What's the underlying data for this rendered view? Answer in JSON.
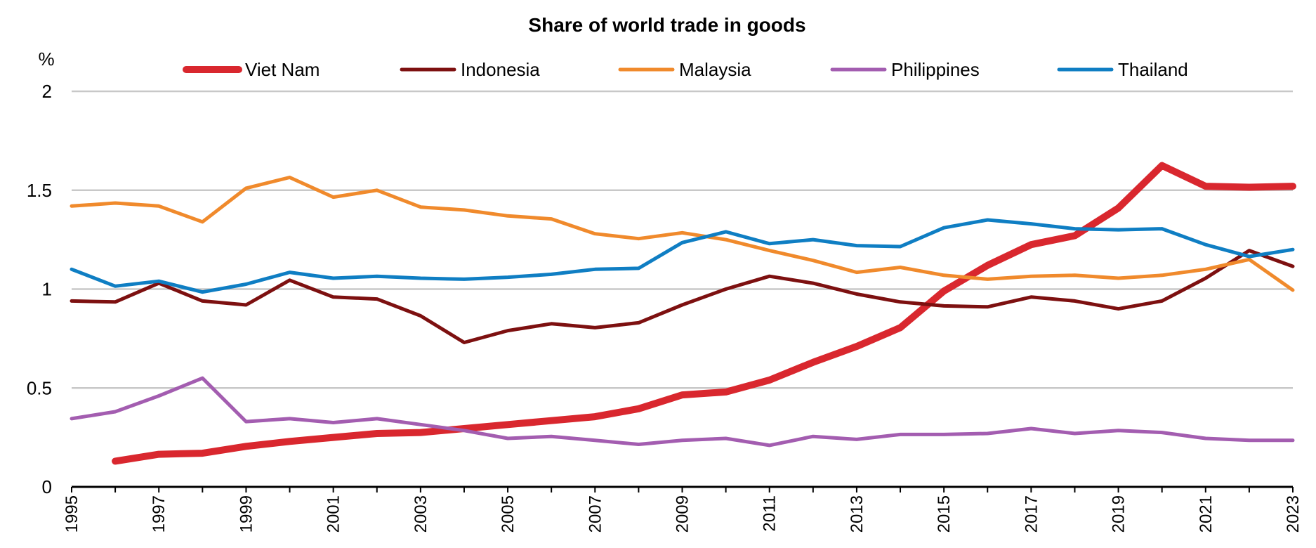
{
  "chart_data": {
    "type": "line",
    "title": "Share of world trade in goods",
    "ylabel": "%",
    "xlabel": "",
    "ylim": [
      0,
      2
    ],
    "yticks": [
      0,
      0.5,
      1,
      1.5,
      2
    ],
    "ytick_labels": [
      "0",
      "0.5",
      "1",
      "1.5",
      "2"
    ],
    "x": [
      1995,
      1996,
      1997,
      1998,
      1999,
      2000,
      2001,
      2002,
      2003,
      2004,
      2005,
      2006,
      2007,
      2008,
      2009,
      2010,
      2011,
      2012,
      2013,
      2014,
      2015,
      2016,
      2017,
      2018,
      2019,
      2020,
      2021,
      2022,
      2023
    ],
    "xtick_labels": [
      "1995",
      "1997",
      "1999",
      "2001",
      "2003",
      "2005",
      "2007",
      "2009",
      "2011",
      "2013",
      "2015",
      "2017",
      "2019",
      "2021",
      "2023"
    ],
    "grid": true,
    "legend_position": "top",
    "series": [
      {
        "name": "Viet Nam",
        "color": "#d9272e",
        "width": "thick",
        "values": [
          null,
          0.13,
          0.165,
          0.17,
          0.205,
          0.23,
          0.25,
          0.27,
          0.275,
          0.295,
          0.315,
          0.335,
          0.355,
          0.395,
          0.465,
          0.48,
          0.54,
          0.63,
          0.71,
          0.805,
          0.99,
          1.12,
          1.225,
          1.27,
          1.41,
          1.625,
          1.52,
          1.515,
          1.52
        ]
      },
      {
        "name": "Indonesia",
        "color": "#7d1010",
        "width": "normal",
        "values": [
          0.94,
          0.935,
          1.03,
          0.94,
          0.92,
          1.045,
          0.96,
          0.95,
          0.865,
          0.73,
          0.79,
          0.825,
          0.805,
          0.83,
          0.92,
          1.0,
          1.065,
          1.03,
          0.975,
          0.935,
          0.915,
          0.91,
          0.96,
          0.94,
          0.9,
          0.94,
          1.055,
          1.195,
          1.115
        ]
      },
      {
        "name": "Malaysia",
        "color": "#f08a2c",
        "width": "normal",
        "values": [
          1.42,
          1.435,
          1.42,
          1.34,
          1.51,
          1.565,
          1.465,
          1.5,
          1.415,
          1.4,
          1.37,
          1.355,
          1.28,
          1.255,
          1.285,
          1.25,
          1.195,
          1.145,
          1.085,
          1.11,
          1.07,
          1.05,
          1.065,
          1.07,
          1.055,
          1.07,
          1.1,
          1.15,
          0.995
        ]
      },
      {
        "name": "Philippines",
        "color": "#a35db0",
        "width": "normal",
        "values": [
          0.345,
          0.38,
          0.46,
          0.55,
          0.33,
          0.345,
          0.325,
          0.345,
          0.315,
          0.285,
          0.245,
          0.255,
          0.235,
          0.215,
          0.235,
          0.245,
          0.21,
          0.255,
          0.24,
          0.265,
          0.265,
          0.27,
          0.295,
          0.27,
          0.285,
          0.275,
          0.245,
          0.235,
          0.235
        ]
      },
      {
        "name": "Thailand",
        "color": "#0f7ec3",
        "width": "normal",
        "values": [
          1.1,
          1.015,
          1.04,
          0.985,
          1.025,
          1.085,
          1.055,
          1.065,
          1.055,
          1.05,
          1.06,
          1.075,
          1.1,
          1.105,
          1.235,
          1.29,
          1.23,
          1.25,
          1.22,
          1.215,
          1.31,
          1.35,
          1.33,
          1.305,
          1.3,
          1.305,
          1.225,
          1.165,
          1.2
        ]
      }
    ]
  }
}
